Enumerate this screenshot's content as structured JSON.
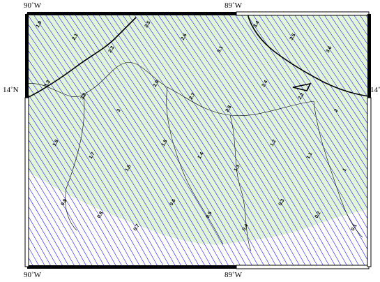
{
  "map": {
    "axis_labels": {
      "top_left": "90˚W",
      "top_right": "89˚W",
      "bottom_left": "90˚W",
      "bottom_right": "89˚W",
      "left": "14˚N",
      "right": "14˚"
    },
    "colors": {
      "land": "#e3f5d9",
      "sea": "#ffffff",
      "contour": "#1a1aff",
      "coastline": "#000000",
      "frame": "#000000"
    },
    "contour_labels": [
      {
        "t": "1.9",
        "d": 0
      },
      {
        "t": "2.1",
        "d": 0
      },
      {
        "t": "2.3",
        "d": 0
      },
      {
        "t": "2.5",
        "d": 0
      },
      {
        "t": "2.6",
        "d": 0
      },
      {
        "t": "3.1",
        "d": 0
      },
      {
        "t": "3.4",
        "d": 0
      },
      {
        "t": "3.5",
        "d": 0
      },
      {
        "t": "3.6",
        "d": 0
      },
      {
        "t": "3.3",
        "d": 0
      },
      {
        "t": "3.2",
        "d": 0
      },
      {
        "t": "3",
        "d": 0
      },
      {
        "t": "2.9",
        "d": 0
      },
      {
        "t": "2.7",
        "d": 0
      },
      {
        "t": "2.8",
        "d": 0
      },
      {
        "t": "2.4",
        "d": 0
      },
      {
        "t": "2.2",
        "d": 0
      },
      {
        "t": "2",
        "d": 0
      },
      {
        "t": "1.8",
        "d": 0
      },
      {
        "t": "1.7",
        "d": 0
      },
      {
        "t": "1.6",
        "d": 0
      },
      {
        "t": "1.5",
        "d": 0
      },
      {
        "t": "1.4",
        "d": 0
      },
      {
        "t": "1.3",
        "d": 0
      },
      {
        "t": "1.2",
        "d": 0
      },
      {
        "t": "1.1",
        "d": 0
      },
      {
        "t": "1",
        "d": 0
      },
      {
        "t": "0.9",
        "d": 0
      },
      {
        "t": "0.8",
        "d": 0
      },
      {
        "t": "0.7",
        "d": 0
      },
      {
        "t": "0.6",
        "d": 0
      },
      {
        "t": "0.5",
        "d": 0
      },
      {
        "t": "0.4",
        "d": 0
      },
      {
        "t": "0.3",
        "d": 0
      },
      {
        "t": "0.2",
        "d": 0
      },
      {
        "t": "0.1",
        "d": 0
      }
    ]
  }
}
